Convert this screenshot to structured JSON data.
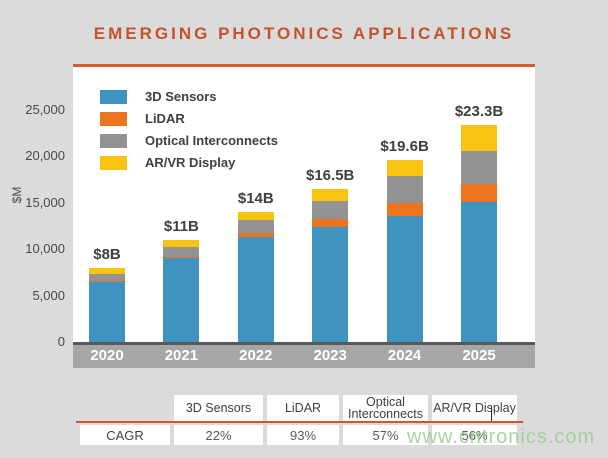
{
  "title": "EMERGING PHOTONICS APPLICATIONS",
  "colors": {
    "background": "#dbdbdb",
    "panel": "#ffffff",
    "title_orange": "#c5532d",
    "panel_top_border": "#d95c2d",
    "series_blue": "#3e93bf",
    "series_orange": "#ed741f",
    "series_gray": "#939394",
    "series_yellow": "#f9c312",
    "axis_line": "#58595b",
    "axis_band": "#a7a7a7",
    "axis_band_text": "#ffffff",
    "table_rule_orange": "#d9542b",
    "watermark_green": "#9ccb95"
  },
  "chart_data": {
    "type": "bar",
    "stacked": true,
    "title": "EMERGING PHOTONICS APPLICATIONS",
    "xlabel": "",
    "ylabel": "$M",
    "ylim": [
      0,
      26000
    ],
    "grid": false,
    "legend_position": "top-left",
    "categories": [
      "2020",
      "2021",
      "2022",
      "2023",
      "2024",
      "2025"
    ],
    "series": [
      {
        "name": "3D Sensors",
        "color": "#3e93bf",
        "values": [
          6500,
          9000,
          11300,
          12400,
          13600,
          15100
        ]
      },
      {
        "name": "LiDAR",
        "color": "#ed741f",
        "values": [
          100,
          100,
          400,
          800,
          1300,
          1900
        ]
      },
      {
        "name": "Optical Interconnects",
        "color": "#939394",
        "values": [
          700,
          1100,
          1400,
          2000,
          2900,
          3500
        ]
      },
      {
        "name": "AR/VR Display",
        "color": "#f9c312",
        "values": [
          700,
          800,
          900,
          1300,
          1800,
          2800
        ]
      }
    ],
    "total_labels": [
      "$8B",
      "$11B",
      "$14B",
      "$16.5B",
      "$19.6B",
      "$23.3B"
    ],
    "yticks": [
      {
        "value": 0,
        "label": "0"
      },
      {
        "value": 5000,
        "label": "5,000"
      },
      {
        "value": 10000,
        "label": "10,000"
      },
      {
        "value": 15000,
        "label": "15,000"
      },
      {
        "value": 20000,
        "label": "20,000"
      },
      {
        "value": 25000,
        "label": "25,000"
      }
    ]
  },
  "table": {
    "column_headers": [
      "",
      "3D Sensors",
      "LiDAR",
      "Optical Interconnects",
      "AR/VR Display"
    ],
    "rows": [
      {
        "label": "CAGR",
        "values": [
          "22%",
          "93%",
          "57%",
          "56%"
        ]
      }
    ]
  },
  "watermark": "www.cntronics.com"
}
